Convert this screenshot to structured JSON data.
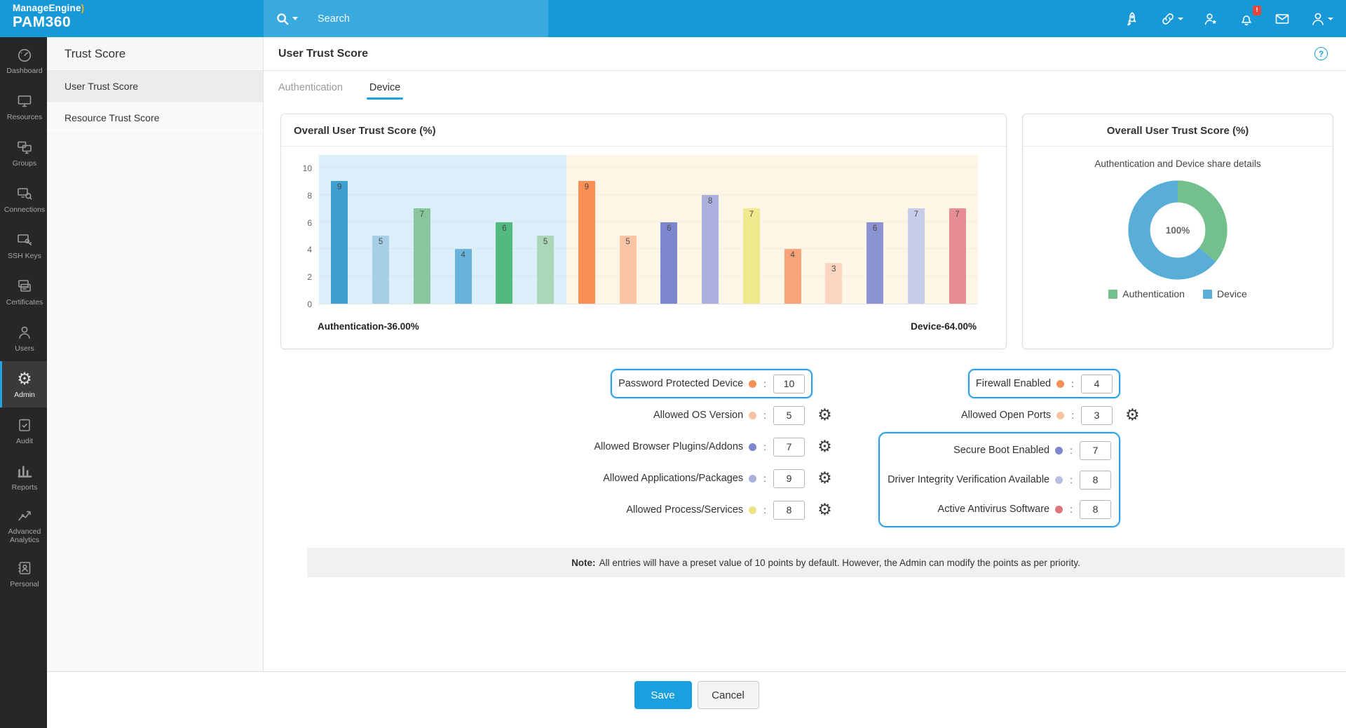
{
  "topbar": {
    "brand_line1": "ManageEngine",
    "brand_swoosh": ")",
    "brand_line2": "PAM360",
    "search_placeholder": "Search",
    "icons": [
      {
        "name": "rocket-icon"
      },
      {
        "name": "link-icon",
        "caret": true
      },
      {
        "name": "user-star-icon"
      },
      {
        "name": "bell-icon",
        "badge": "!"
      },
      {
        "name": "mail-icon"
      },
      {
        "name": "profile-icon",
        "caret": true
      }
    ]
  },
  "sidebar": {
    "items": [
      {
        "label": "Dashboard",
        "icon": "gauge",
        "active": false
      },
      {
        "label": "Resources",
        "icon": "monitor",
        "active": false
      },
      {
        "label": "Groups",
        "icon": "monitors",
        "active": false
      },
      {
        "label": "Connections",
        "icon": "satellite",
        "active": false
      },
      {
        "label": "SSH Keys",
        "icon": "sshkey",
        "active": false
      },
      {
        "label": "Certificates",
        "icon": "certificate",
        "active": false
      },
      {
        "label": "Users",
        "icon": "user",
        "active": false
      },
      {
        "label": "Admin",
        "icon": "gear",
        "active": true
      },
      {
        "label": "Audit",
        "icon": "clipboard",
        "active": false
      },
      {
        "label": "Reports",
        "icon": "barchart",
        "active": false
      },
      {
        "label": "Advanced Analytics",
        "icon": "analytics",
        "active": false
      },
      {
        "label": "Personal",
        "icon": "contact",
        "active": false
      }
    ]
  },
  "secondary_sidebar": {
    "title": "Trust Score",
    "items": [
      {
        "label": "User Trust Score",
        "active": true
      },
      {
        "label": "Resource Trust Score",
        "active": false
      }
    ]
  },
  "page": {
    "title": "User Trust Score",
    "help_label": "?",
    "tabs": [
      {
        "label": "Authentication",
        "active": false
      },
      {
        "label": "Device",
        "active": true
      }
    ]
  },
  "chart_data": [
    {
      "type": "bar",
      "title": "Overall User Trust Score (%)",
      "ylim": [
        0,
        10
      ],
      "yticks": [
        0,
        2,
        4,
        6,
        8,
        10
      ],
      "grid": true,
      "groups": [
        {
          "name": "Authentication",
          "share_label": "Authentication-36.00%",
          "background": "#dceefa",
          "bars": [
            {
              "value": 9,
              "color": "#3f9fd0"
            },
            {
              "value": 5,
              "color": "#a6cfe5"
            },
            {
              "value": 7,
              "color": "#87c79b"
            },
            {
              "value": 4,
              "color": "#69b4da"
            },
            {
              "value": 6,
              "color": "#52ba7e"
            },
            {
              "value": 5,
              "color": "#abd6b8"
            }
          ]
        },
        {
          "name": "Device",
          "share_label": "Device-64.00%",
          "background": "#fdf5e5",
          "bars": [
            {
              "value": 9,
              "color": "#fa9055"
            },
            {
              "value": 5,
              "color": "#fac5a7"
            },
            {
              "value": 6,
              "color": "#7d87cd"
            },
            {
              "value": 8,
              "color": "#abb0df"
            },
            {
              "value": 7,
              "color": "#f1e98d"
            },
            {
              "value": 4,
              "color": "#f9a478"
            },
            {
              "value": 3,
              "color": "#fbd5bf"
            },
            {
              "value": 6,
              "color": "#8b94d1"
            },
            {
              "value": 7,
              "color": "#c7cce9"
            },
            {
              "value": 7,
              "color": "#e68e94"
            }
          ]
        }
      ]
    },
    {
      "type": "pie",
      "title": "Overall User Trust Score (%)",
      "subtitle": "Authentication and Device share details",
      "center_label": "100%",
      "legend_position": "bottom",
      "slices": [
        {
          "label": "Authentication",
          "value": 36,
          "color": "#74c08d"
        },
        {
          "label": "Device",
          "value": 64,
          "color": "#58aed6"
        }
      ]
    }
  ],
  "form": {
    "left_rows": [
      {
        "label": "Password Protected Device",
        "dot_color": "#f68f55",
        "value": "10",
        "highlight": true,
        "gear": false
      },
      {
        "label": "Allowed OS Version",
        "dot_color": "#f9c3a3",
        "value": "5",
        "highlight": false,
        "gear": true
      },
      {
        "label": "Allowed Browser Plugins/Addons",
        "dot_color": "#7d87cd",
        "value": "7",
        "highlight": false,
        "gear": true
      },
      {
        "label": "Allowed Applications/Packages",
        "dot_color": "#abb0df",
        "value": "9",
        "highlight": false,
        "gear": true
      },
      {
        "label": "Allowed Process/Services",
        "dot_color": "#efe381",
        "value": "8",
        "highlight": false,
        "gear": true
      }
    ],
    "right_rows": [
      {
        "label": "Firewall Enabled",
        "dot_color": "#f68f55",
        "value": "4",
        "highlight": true,
        "gear": false
      },
      {
        "label": "Allowed Open Ports",
        "dot_color": "#f9c3a3",
        "value": "3",
        "highlight": false,
        "gear": true
      }
    ],
    "right_group": {
      "highlight": true,
      "rows": [
        {
          "label": "Secure Boot Enabled",
          "dot_color": "#7d87cd",
          "value": "7"
        },
        {
          "label": "Driver Integrity Verification Available",
          "dot_color": "#b9bee4",
          "value": "8"
        },
        {
          "label": "Active Antivirus Software",
          "dot_color": "#e0757c",
          "value": "8"
        }
      ]
    }
  },
  "note": {
    "prefix": "Note:",
    "text": "All entries will have a preset value of 10 points by default. However, the Admin can modify the points as per priority."
  },
  "footer": {
    "save_label": "Save",
    "cancel_label": "Cancel"
  },
  "colors": {
    "topbar": "#1899d7",
    "search_bg": "#39a9df",
    "accent": "#1a9fe0",
    "highlight_border": "#2ba1e3",
    "sidebar_bg": "#272727",
    "note_bg": "#f1f1f1"
  }
}
